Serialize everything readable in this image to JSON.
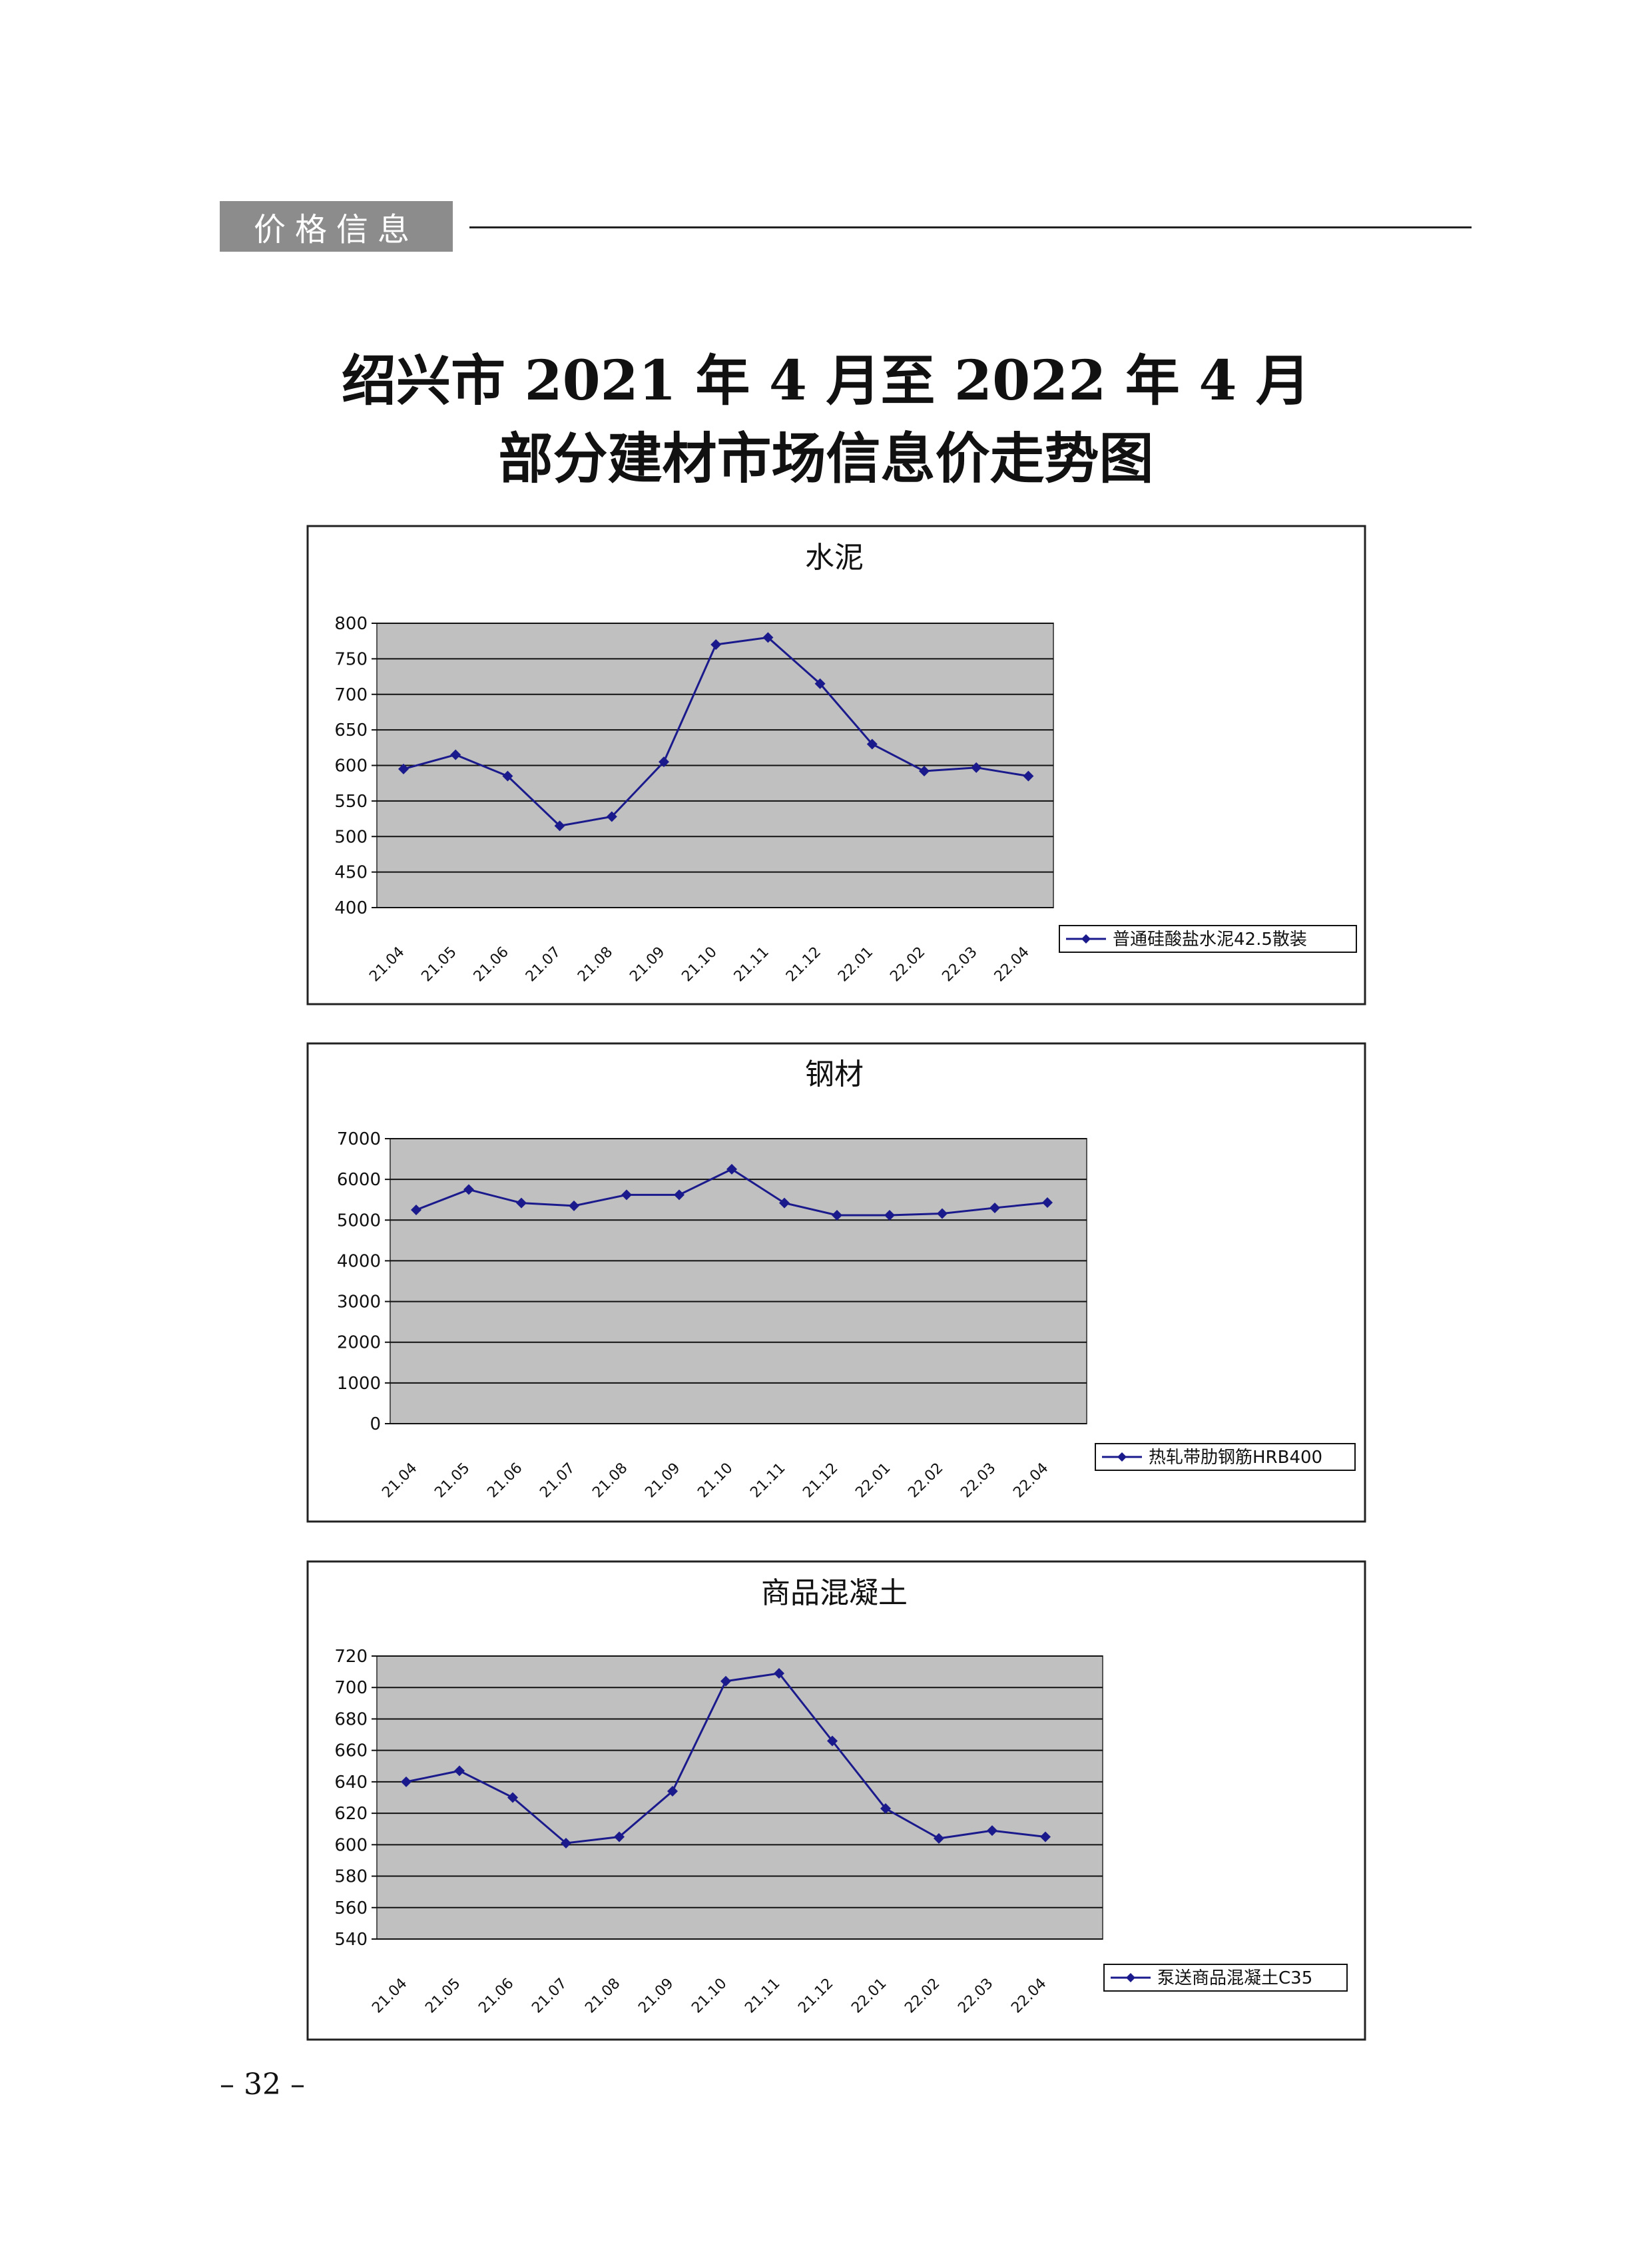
{
  "header": {
    "section_tag": "价格信息"
  },
  "title": {
    "line1": "绍兴市 2021 年 4 月至 2022 年 4 月",
    "line2": "部分建材市场信息价走势图"
  },
  "page_number": "– 32 –",
  "colors": {
    "plot_bg": "#c0c0c0",
    "series": "#1a1a8c",
    "frame": "#222222"
  },
  "chart_data": [
    {
      "type": "line",
      "title": "水泥",
      "categories": [
        "21.04",
        "21.05",
        "21.06",
        "21.07",
        "21.08",
        "21.09",
        "21.10",
        "21.11",
        "21.12",
        "22.01",
        "22.02",
        "22.03",
        "22.04"
      ],
      "series": [
        {
          "name": "普通硅酸盐水泥42.5散装",
          "values": [
            595,
            615,
            585,
            515,
            528,
            605,
            770,
            780,
            715,
            630,
            592,
            597,
            585
          ]
        }
      ],
      "ylim": [
        400,
        800
      ],
      "yticks": [
        400,
        450,
        500,
        550,
        600,
        650,
        700,
        750,
        800
      ],
      "grid": true,
      "legend": "right"
    },
    {
      "type": "line",
      "title": "钢材",
      "categories": [
        "21.04",
        "21.05",
        "21.06",
        "21.07",
        "21.08",
        "21.09",
        "21.10",
        "21.11",
        "21.12",
        "22.01",
        "22.02",
        "22.03",
        "22.04"
      ],
      "series": [
        {
          "name": "热轧带肋钢筋HRB400",
          "values": [
            5250,
            5750,
            5420,
            5350,
            5620,
            5620,
            6250,
            5420,
            5120,
            5120,
            5160,
            5300,
            5430
          ]
        }
      ],
      "ylim": [
        0,
        7000
      ],
      "yticks": [
        0,
        1000,
        2000,
        3000,
        4000,
        5000,
        6000,
        7000
      ],
      "grid": true,
      "legend": "right"
    },
    {
      "type": "line",
      "title": "商品混凝土",
      "categories": [
        "21.04",
        "21.05",
        "21.06",
        "21.07",
        "21.08",
        "21.09",
        "21.10",
        "21.11",
        "21.12",
        "22.01",
        "22.02",
        "22.03",
        "22.04"
      ],
      "series": [
        {
          "name": "泵送商品混凝土C35",
          "values": [
            640,
            647,
            630,
            601,
            605,
            634,
            704,
            709,
            666,
            623,
            604,
            609,
            605
          ]
        }
      ],
      "ylim": [
        540,
        720
      ],
      "yticks": [
        540,
        560,
        580,
        600,
        620,
        640,
        660,
        680,
        700,
        720
      ],
      "grid": true,
      "legend": "right"
    }
  ]
}
